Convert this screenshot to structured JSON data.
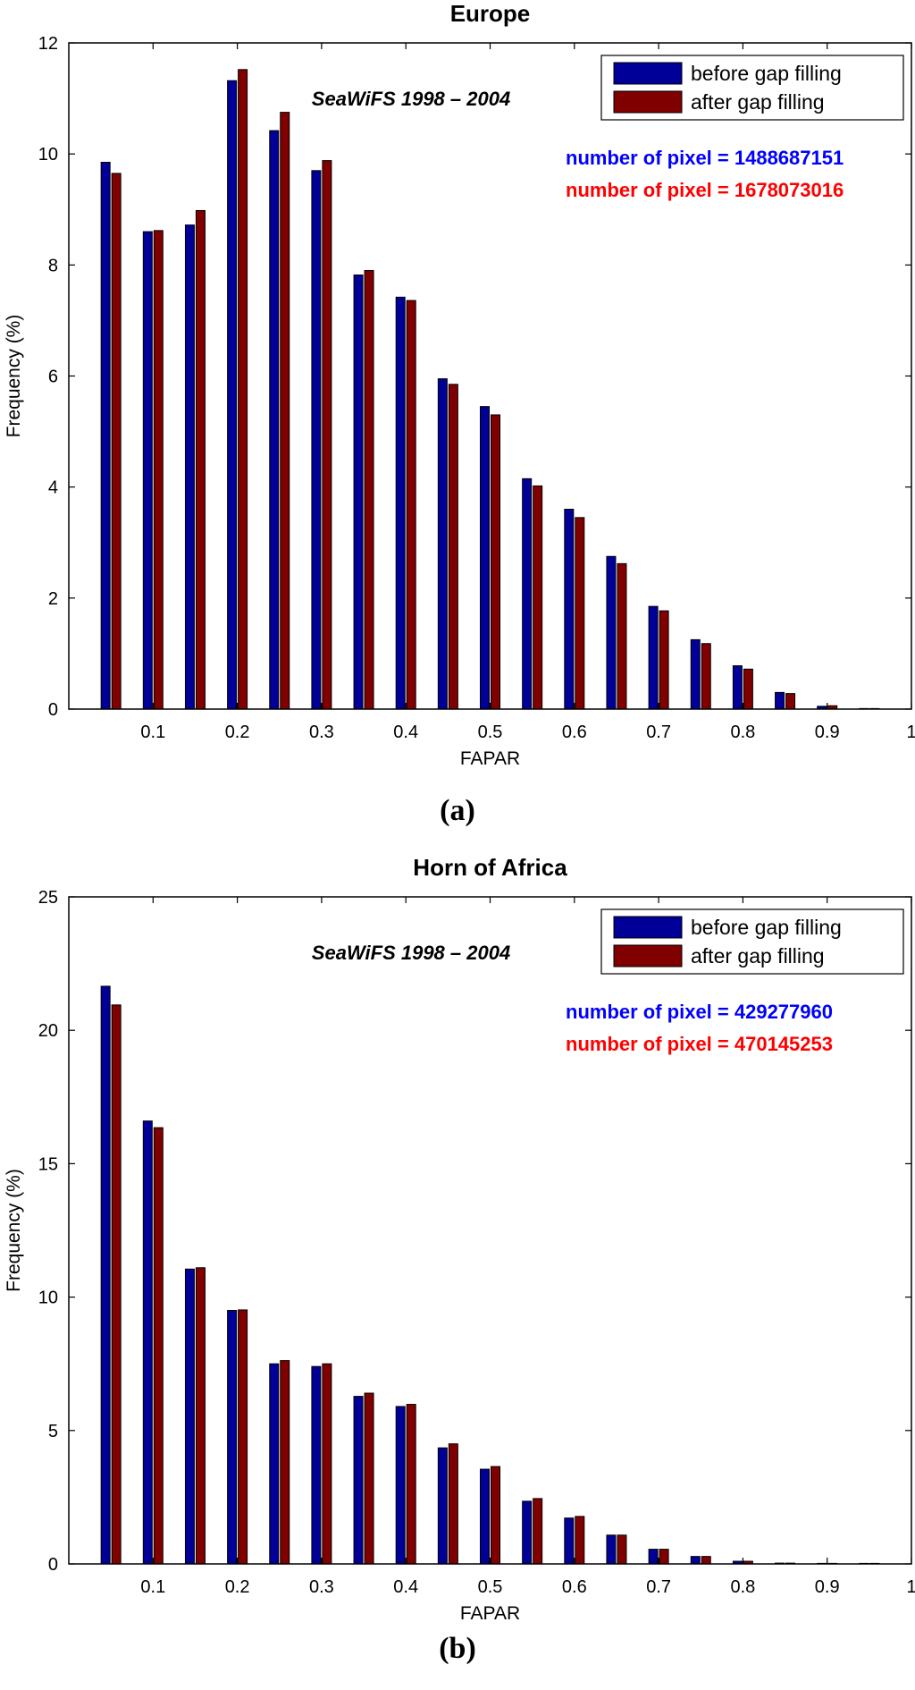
{
  "chart_data": [
    {
      "type": "bar",
      "title": "Europe",
      "subtitle": "SeaWiFS 1998 – 2004",
      "xlabel": "FAPAR",
      "ylabel": "Frequency (%)",
      "xlim": [
        0,
        1
      ],
      "ylim": [
        0,
        12
      ],
      "y_ticks": [
        0,
        2,
        4,
        6,
        8,
        10,
        12
      ],
      "x_ticks": [
        0.1,
        0.2,
        0.3,
        0.4,
        0.5,
        0.6,
        0.7,
        0.8,
        0.9,
        1
      ],
      "bin_centers": [
        0.05,
        0.1,
        0.15,
        0.2,
        0.25,
        0.3,
        0.35,
        0.4,
        0.45,
        0.5,
        0.55,
        0.6,
        0.65,
        0.7,
        0.75,
        0.8,
        0.85,
        0.9,
        0.95
      ],
      "series": [
        {
          "name": "before gap filling",
          "color": "#000099",
          "values": [
            9.85,
            8.6,
            8.72,
            11.32,
            10.42,
            9.7,
            7.82,
            7.42,
            5.95,
            5.45,
            4.15,
            3.6,
            2.75,
            1.85,
            1.25,
            0.78,
            0.3,
            0.05,
            0.01
          ]
        },
        {
          "name": "after gap filling",
          "color": "#800000",
          "values": [
            9.65,
            8.62,
            8.98,
            11.52,
            10.75,
            9.88,
            7.9,
            7.36,
            5.85,
            5.3,
            4.02,
            3.45,
            2.62,
            1.77,
            1.18,
            0.72,
            0.28,
            0.06,
            0.01
          ]
        }
      ],
      "legend_position": "top-right",
      "annotations": [
        {
          "text": "number of pixel = 1488687151",
          "color": "#0000ff"
        },
        {
          "text": "number of pixel = 1678073016",
          "color": "#ff0000"
        }
      ],
      "panel_label": "(a)"
    },
    {
      "type": "bar",
      "title": "Horn of Africa",
      "subtitle": "SeaWiFS 1998 – 2004",
      "xlabel": "FAPAR",
      "ylabel": "Frequency (%)",
      "xlim": [
        0,
        1
      ],
      "ylim": [
        0,
        25
      ],
      "y_ticks": [
        0,
        5,
        10,
        15,
        20,
        25
      ],
      "x_ticks": [
        0.1,
        0.2,
        0.3,
        0.4,
        0.5,
        0.6,
        0.7,
        0.8,
        0.9,
        1
      ],
      "bin_centers": [
        0.05,
        0.1,
        0.15,
        0.2,
        0.25,
        0.3,
        0.35,
        0.4,
        0.45,
        0.5,
        0.55,
        0.6,
        0.65,
        0.7,
        0.75,
        0.8,
        0.85,
        0.9,
        0.95
      ],
      "series": [
        {
          "name": "before gap filling",
          "color": "#000099",
          "values": [
            21.65,
            16.6,
            11.05,
            9.5,
            7.5,
            7.4,
            6.28,
            5.9,
            4.35,
            3.55,
            2.35,
            1.72,
            1.08,
            0.55,
            0.28,
            0.1,
            0.03,
            0.01,
            0.01
          ]
        },
        {
          "name": "after gap filling",
          "color": "#800000",
          "values": [
            20.95,
            16.35,
            11.1,
            9.52,
            7.62,
            7.5,
            6.4,
            5.98,
            4.5,
            3.65,
            2.45,
            1.78,
            1.08,
            0.55,
            0.28,
            0.1,
            0.03,
            0.01,
            0.01
          ]
        }
      ],
      "legend_position": "top-right",
      "annotations": [
        {
          "text": "number of pixel = 429277960",
          "color": "#0000ff"
        },
        {
          "text": "number of pixel = 470145253",
          "color": "#ff0000"
        }
      ],
      "panel_label": "(b)"
    }
  ]
}
